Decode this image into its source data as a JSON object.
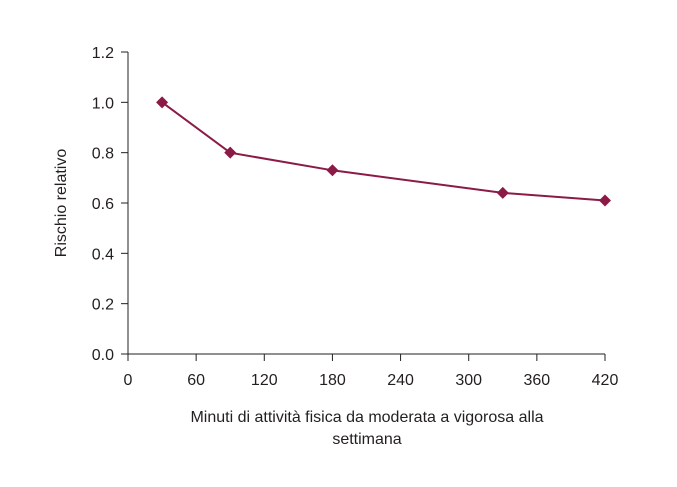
{
  "chart_data": {
    "type": "line",
    "title": "",
    "xlabel_lines": [
      "Minuti di attività fisica da moderata a vigorosa alla",
      "settimana"
    ],
    "ylabel": "Rischio relativo",
    "xlim": [
      0,
      420
    ],
    "ylim": [
      0,
      1.2
    ],
    "xticks": [
      "0",
      "60",
      "120",
      "180",
      "240",
      "300",
      "360",
      "420"
    ],
    "yticks": [
      "0.0",
      "0.2",
      "0.4",
      "0.6",
      "0.8",
      "1.0",
      "1.2"
    ],
    "grid": false,
    "legend": "none",
    "series": [
      {
        "color": "#8b1a47",
        "marker": "diamond",
        "x": [
          30,
          90,
          180,
          330,
          420
        ],
        "y": [
          1.0,
          0.8,
          0.73,
          0.64,
          0.61
        ]
      }
    ]
  },
  "colors": {
    "axis": "#231f20",
    "series": "#8b1a47"
  }
}
